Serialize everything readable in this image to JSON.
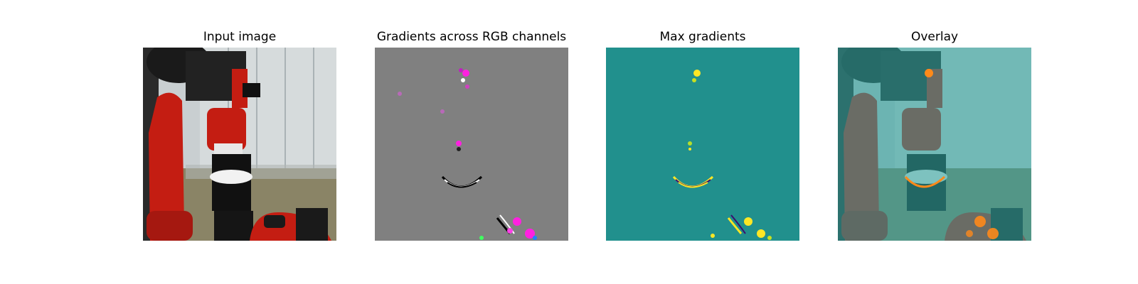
{
  "figure": {
    "panels": [
      {
        "title": "Input image",
        "image_kind": "robot-photo"
      },
      {
        "title": "Gradients across RGB channels",
        "image_kind": "rgb-gradient-map"
      },
      {
        "title": "Max gradients",
        "image_kind": "max-gradient-heatmap"
      },
      {
        "title": "Overlay",
        "image_kind": "overlay-photo"
      }
    ]
  },
  "colors": {
    "robot_red": "#c41d12",
    "robot_black": "#1a1a1a",
    "wall": "#c9cfd1",
    "floor": "#8a8466",
    "gradient_gray": "#808080",
    "highlight_magenta": "#ff20e0",
    "heatmap_teal": "#21908d",
    "heatmap_yellow": "#fde725",
    "overlay_teal": "#2fa19d",
    "overlay_orange": "#ff8a1a"
  }
}
